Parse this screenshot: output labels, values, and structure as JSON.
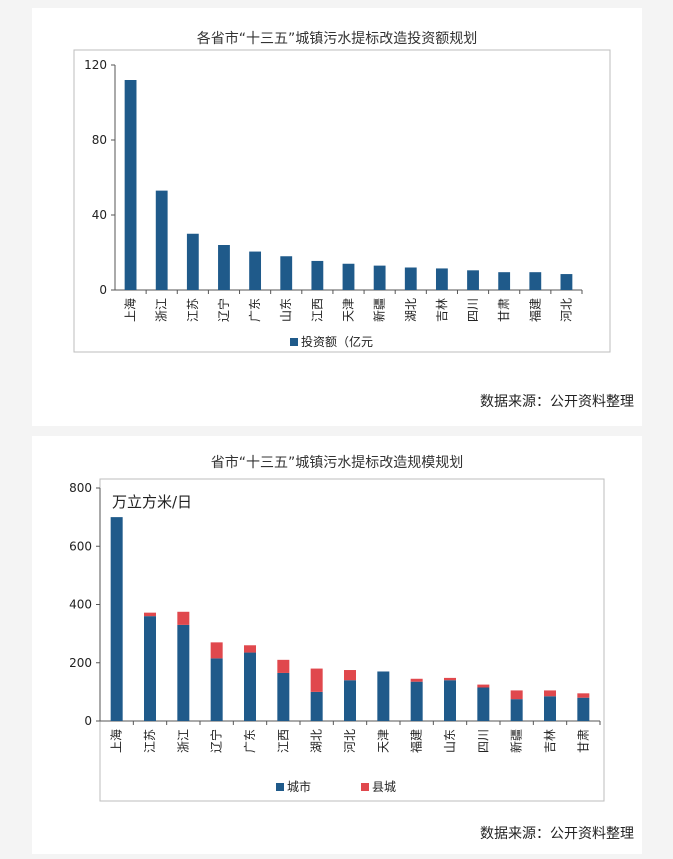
{
  "chart_data": [
    {
      "type": "bar",
      "title": "各省市“十三五”城镇污水提标改造投资额规划",
      "categories": [
        "上海",
        "浙江",
        "江苏",
        "辽宁",
        "广东",
        "山东",
        "江西",
        "天津",
        "新疆",
        "湖北",
        "吉林",
        "四川",
        "甘肃",
        "福建",
        "河北"
      ],
      "series": [
        {
          "name": "投资额（亿元",
          "color": "#1f5a8a",
          "values": [
            112,
            53,
            30,
            24,
            20.5,
            18,
            15.5,
            14,
            13,
            12,
            11.5,
            10.5,
            9.5,
            9.5,
            8.5
          ]
        }
      ],
      "yticks": [
        0,
        40,
        80,
        120
      ],
      "ylim": [
        0,
        120
      ],
      "legend_position": "bottom",
      "source": "数据来源：公开资料整理"
    },
    {
      "type": "stacked-bar",
      "title": "省市“十三五”城镇污水提标改造规模规划",
      "unit_label": "万立方米/日",
      "categories": [
        "上海",
        "江苏",
        "浙江",
        "辽宁",
        "广东",
        "江西",
        "湖北",
        "河北",
        "天津",
        "福建",
        "山东",
        "四川",
        "新疆",
        "吉林",
        "甘肃"
      ],
      "series": [
        {
          "name": "城市",
          "color": "#1f5a8a",
          "values": [
            700,
            360,
            330,
            215,
            235,
            165,
            100,
            140,
            170,
            135,
            140,
            115,
            75,
            85,
            80
          ]
        },
        {
          "name": "县城",
          "color": "#e0484d",
          "values": [
            0,
            12,
            45,
            55,
            25,
            45,
            80,
            35,
            0,
            10,
            8,
            10,
            30,
            20,
            15
          ]
        }
      ],
      "yticks": [
        0,
        200,
        400,
        600,
        800
      ],
      "ylim": [
        0,
        800
      ],
      "legend_position": "bottom",
      "source": "数据来源：公开资料整理"
    }
  ]
}
